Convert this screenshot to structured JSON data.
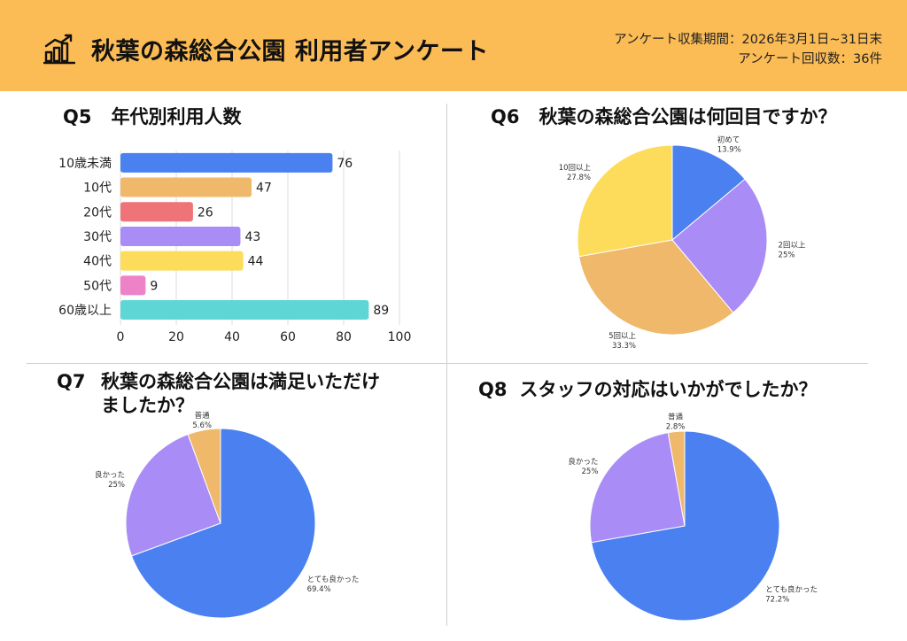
{
  "header": {
    "title": "秋葉の森総合公園 利用者アンケート",
    "period": "アンケート収集期間：2026年3月1日~31日末",
    "count": "アンケート回収数：36件"
  },
  "colors": {
    "header_bg": "#fbbb55",
    "blue": "#4a80f0",
    "purple": "#a98cf5",
    "orange": "#efb86a",
    "yellow": "#fcdc5a",
    "red": "#ee7478",
    "pink": "#ee82c8",
    "teal": "#5ed6d6"
  },
  "q5": {
    "num": "Q5",
    "title": "年代別利用人数"
  },
  "q6": {
    "num": "Q6",
    "title": "秋葉の森総合公園は何回目ですか？"
  },
  "q7": {
    "num": "Q7",
    "title_line1": "秋葉の森総合公園は満足いただけ",
    "title_line2": "ましたか？"
  },
  "q8": {
    "num": "Q8",
    "title": "スタッフの対応はいかがでしたか？"
  },
  "chart_data": [
    {
      "id": "q5",
      "type": "bar",
      "orientation": "horizontal",
      "title": "年代別利用人数",
      "categories": [
        "10歳未満",
        "10代",
        "20代",
        "30代",
        "40代",
        "50代",
        "60歳以上"
      ],
      "values": [
        76,
        47,
        26,
        43,
        44,
        9,
        89
      ],
      "colors": [
        "#4a80f0",
        "#efb86a",
        "#ee7478",
        "#a98cf5",
        "#fcdc5a",
        "#ee82c8",
        "#5ed6d6"
      ],
      "xlim": [
        0,
        100
      ],
      "xticks": [
        0,
        20,
        40,
        60,
        80,
        100
      ],
      "grid": true
    },
    {
      "id": "q6",
      "type": "pie",
      "title": "秋葉の森総合公園は何回目ですか？",
      "labels": [
        "初めて",
        "2回以上",
        "5回以上",
        "10回以上"
      ],
      "values": [
        13.9,
        25,
        33.3,
        27.8
      ],
      "value_labels": [
        "13.9%",
        "25%",
        "33.3%",
        "27.8%"
      ],
      "colors": [
        "#4a80f0",
        "#a98cf5",
        "#efb86a",
        "#fcdc5a"
      ]
    },
    {
      "id": "q7",
      "type": "pie",
      "title": "秋葉の森総合公園は満足いただけましたか？",
      "labels": [
        "とても良かった",
        "良かった",
        "普通"
      ],
      "values": [
        69.4,
        25,
        5.6
      ],
      "value_labels": [
        "69.4%",
        "25%",
        "5.6%"
      ],
      "colors": [
        "#4a80f0",
        "#a98cf5",
        "#efb86a"
      ]
    },
    {
      "id": "q8",
      "type": "pie",
      "title": "スタッフの対応はいかがでしたか？",
      "labels": [
        "とても良かった",
        "良かった",
        "普通"
      ],
      "values": [
        72.2,
        25,
        2.8
      ],
      "value_labels": [
        "72.2%",
        "25%",
        "2.8%"
      ],
      "colors": [
        "#4a80f0",
        "#a98cf5",
        "#efb86a"
      ]
    }
  ]
}
